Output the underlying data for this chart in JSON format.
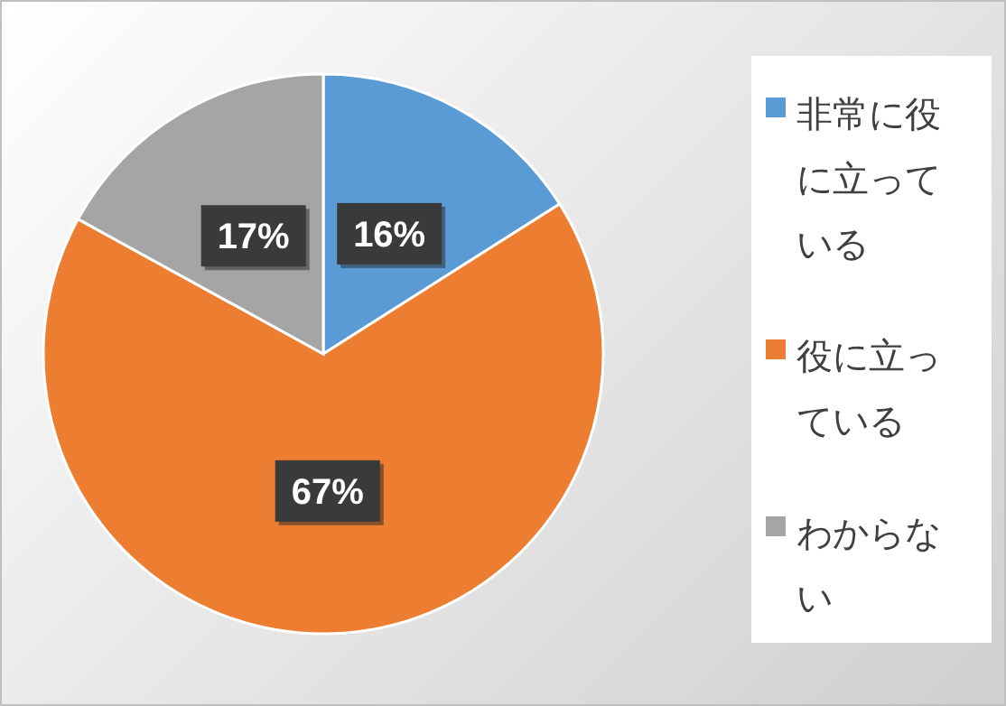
{
  "chart_data": {
    "type": "pie",
    "categories": [
      "非常に役に立っている",
      "役に立っている",
      "わからない"
    ],
    "values": [
      16,
      67,
      17
    ],
    "colors": [
      "#5b9bd5",
      "#ed7d31",
      "#a5a5a5"
    ],
    "value_labels": [
      "16%",
      "67%",
      "17%"
    ],
    "legend": "right"
  }
}
